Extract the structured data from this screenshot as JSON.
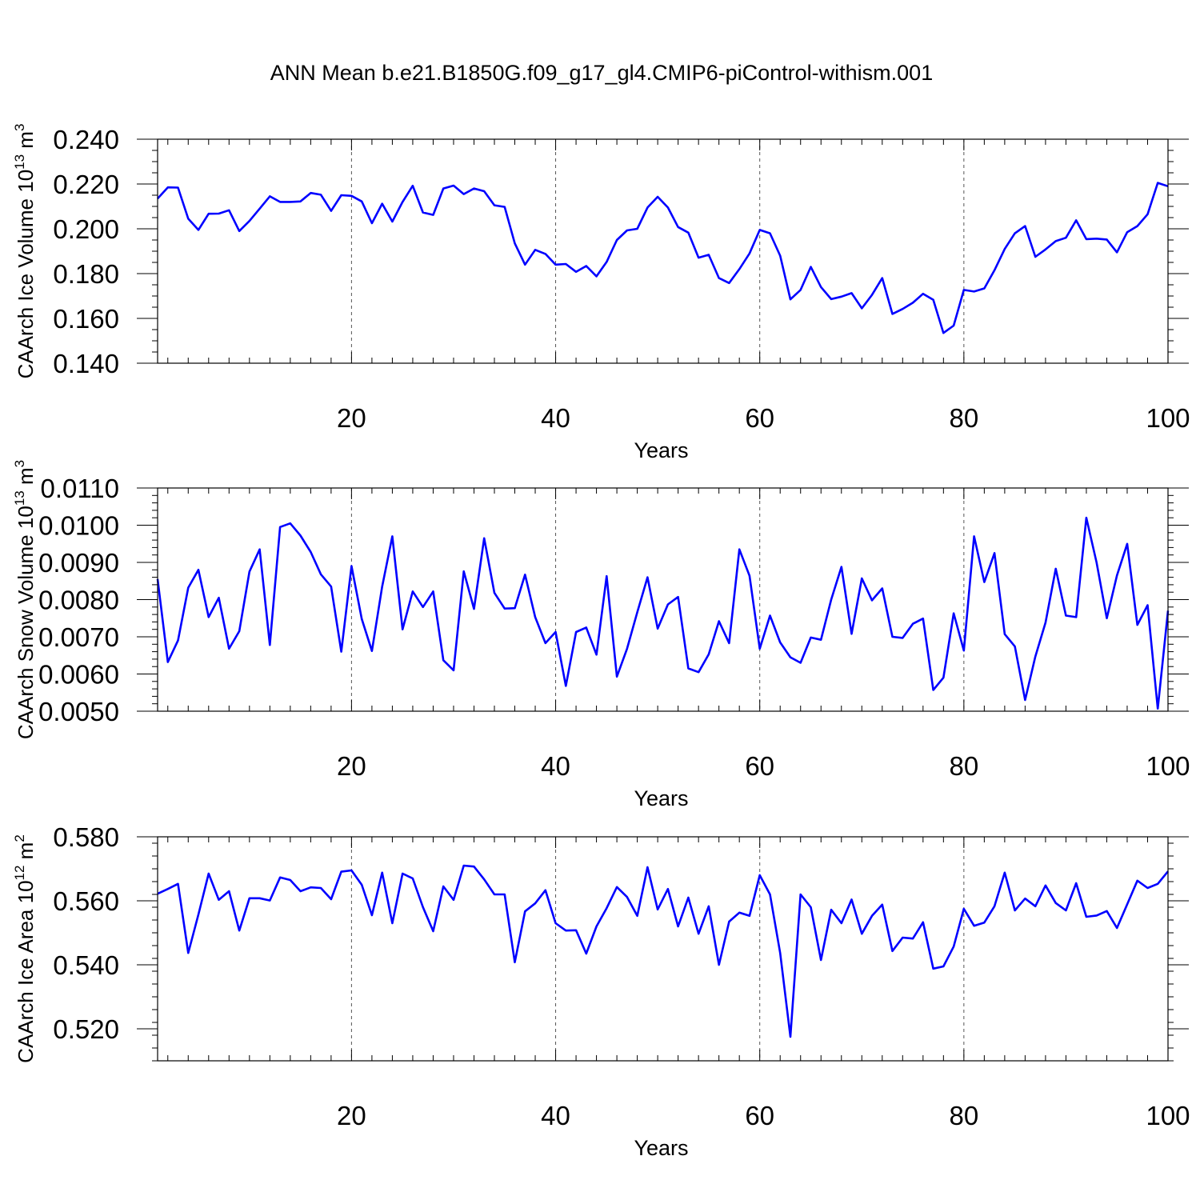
{
  "title": "ANN Mean b.e21.B1850G.f09_g17_gl4.CMIP6-piControl-withism.001",
  "colors": {
    "line": "#0000ff",
    "axis": "#000000",
    "grid": "#555555",
    "background": "#ffffff"
  },
  "chart_data": [
    {
      "type": "line",
      "ylabel": "CAArch Ice Volume 10",
      "ylabel_exp": "13",
      "ylabel_unit": " m",
      "ylabel_unit_exp": "3",
      "xlabel": "Years",
      "xlim": [
        1,
        100
      ],
      "ylim": [
        0.14,
        0.24
      ],
      "yticks": [
        0.14,
        0.16,
        0.18,
        0.2,
        0.22,
        0.24
      ],
      "yticklabels": [
        "0.140",
        "0.160",
        "0.180",
        "0.200",
        "0.220",
        "0.240"
      ],
      "yminor": 0.005,
      "xticks": [
        20,
        40,
        60,
        80,
        100
      ],
      "xticklabels": [
        "20",
        "40",
        "60",
        "80",
        "100"
      ],
      "xgrid": [
        20,
        40,
        60,
        80
      ],
      "x_start": 1,
      "series": [
        {
          "name": "CAArch Ice Volume",
          "values": [
            0.2135,
            0.2185,
            0.2184,
            0.2045,
            0.1995,
            0.2067,
            0.2068,
            0.2083,
            0.199,
            0.2035,
            0.209,
            0.2145,
            0.212,
            0.212,
            0.2122,
            0.216,
            0.2152,
            0.208,
            0.215,
            0.2147,
            0.2122,
            0.2025,
            0.2112,
            0.2032,
            0.212,
            0.2192,
            0.2073,
            0.2062,
            0.218,
            0.2193,
            0.2155,
            0.218,
            0.2168,
            0.2105,
            0.2098,
            0.1935,
            0.184,
            0.1906,
            0.1888,
            0.184,
            0.1843,
            0.1808,
            0.1834,
            0.1788,
            0.1852,
            0.195,
            0.1993,
            0.2,
            0.2095,
            0.2143,
            0.2095,
            0.2008,
            0.1983,
            0.1871,
            0.1884,
            0.178,
            0.1758,
            0.182,
            0.189,
            0.1995,
            0.198,
            0.188,
            0.1685,
            0.1727,
            0.183,
            0.174,
            0.1686,
            0.1697,
            0.1713,
            0.1645,
            0.1705,
            0.178,
            0.162,
            0.1642,
            0.167,
            0.171,
            0.1683,
            0.1535,
            0.1568,
            0.1727,
            0.172,
            0.1734,
            0.1815,
            0.191,
            0.198,
            0.2012,
            0.1875,
            0.1908,
            0.1945,
            0.196,
            0.2038,
            0.1954,
            0.1956,
            0.1952,
            0.1895,
            0.1985,
            0.2012,
            0.2065,
            0.2205,
            0.219
          ]
        }
      ]
    },
    {
      "type": "line",
      "ylabel": "CAArch Snow Volume 10",
      "ylabel_exp": "13",
      "ylabel_unit": " m",
      "ylabel_unit_exp": "3",
      "xlabel": "Years",
      "xlim": [
        1,
        100
      ],
      "ylim": [
        0.005,
        0.011
      ],
      "yticks": [
        0.005,
        0.006,
        0.007,
        0.008,
        0.009,
        0.01,
        0.011
      ],
      "yticklabels": [
        "0.0050",
        "0.0060",
        "0.0070",
        "0.0080",
        "0.0090",
        "0.0100",
        "0.0110"
      ],
      "yminor": 0.0002,
      "xticks": [
        20,
        40,
        60,
        80,
        100
      ],
      "xticklabels": [
        "20",
        "40",
        "60",
        "80",
        "100"
      ],
      "xgrid": [
        20,
        40,
        60,
        80
      ],
      "x_start": 1,
      "series": [
        {
          "name": "CAArch Snow Volume",
          "values": [
            0.00855,
            0.00632,
            0.0069,
            0.00832,
            0.0088,
            0.00753,
            0.00805,
            0.00668,
            0.00715,
            0.00875,
            0.00935,
            0.00678,
            0.00995,
            0.01005,
            0.00972,
            0.00928,
            0.00868,
            0.00835,
            0.0066,
            0.0089,
            0.00748,
            0.00662,
            0.00835,
            0.0097,
            0.0072,
            0.00822,
            0.0078,
            0.00822,
            0.00637,
            0.0061,
            0.00876,
            0.00775,
            0.00965,
            0.00818,
            0.00776,
            0.00777,
            0.00867,
            0.00753,
            0.00683,
            0.00713,
            0.00568,
            0.00713,
            0.00725,
            0.00652,
            0.00863,
            0.00593,
            0.00668,
            0.00766,
            0.0086,
            0.00722,
            0.00787,
            0.00807,
            0.00615,
            0.00605,
            0.00653,
            0.00742,
            0.00683,
            0.00935,
            0.00864,
            0.00668,
            0.00757,
            0.00685,
            0.00645,
            0.0063,
            0.00698,
            0.00692,
            0.008,
            0.00888,
            0.00708,
            0.00857,
            0.00798,
            0.0083,
            0.007,
            0.00697,
            0.00735,
            0.00749,
            0.00557,
            0.0059,
            0.00763,
            0.00663,
            0.0097,
            0.00847,
            0.00925,
            0.00707,
            0.00674,
            0.0053,
            0.00647,
            0.00738,
            0.00883,
            0.00757,
            0.00753,
            0.0102,
            0.009,
            0.0075,
            0.00865,
            0.0095,
            0.00732,
            0.00785,
            0.00507,
            0.0077
          ]
        }
      ]
    },
    {
      "type": "line",
      "ylabel": "CAArch Ice Area 10",
      "ylabel_exp": "12",
      "ylabel_unit": " m",
      "ylabel_unit_exp": "2",
      "xlabel": "Years",
      "xlim": [
        1,
        100
      ],
      "ylim": [
        0.51,
        0.58
      ],
      "yticks": [
        0.52,
        0.54,
        0.56,
        0.58
      ],
      "yticklabels": [
        "0.520",
        "0.540",
        "0.560",
        "0.580"
      ],
      "yminor": 0.004,
      "xticks": [
        20,
        40,
        60,
        80,
        100
      ],
      "xticklabels": [
        "20",
        "40",
        "60",
        "80",
        "100"
      ],
      "xgrid": [
        20,
        40,
        60,
        80
      ],
      "x_start": 1,
      "series": [
        {
          "name": "CAArch Ice Area",
          "values": [
            0.5622,
            0.5637,
            0.5653,
            0.5437,
            0.5557,
            0.5685,
            0.5603,
            0.563,
            0.5507,
            0.5608,
            0.5608,
            0.5601,
            0.5673,
            0.5665,
            0.563,
            0.5642,
            0.564,
            0.5605,
            0.5691,
            0.5695,
            0.565,
            0.5555,
            0.5688,
            0.553,
            0.5685,
            0.567,
            0.558,
            0.5505,
            0.5645,
            0.5603,
            0.571,
            0.5707,
            0.5667,
            0.562,
            0.562,
            0.5408,
            0.5567,
            0.5592,
            0.5633,
            0.553,
            0.5507,
            0.5508,
            0.5435,
            0.552,
            0.5577,
            0.5643,
            0.5612,
            0.5553,
            0.5705,
            0.5573,
            0.5637,
            0.552,
            0.561,
            0.5497,
            0.5583,
            0.54,
            0.5535,
            0.5563,
            0.5553,
            0.568,
            0.562,
            0.5437,
            0.5175,
            0.562,
            0.558,
            0.5415,
            0.5572,
            0.553,
            0.5604,
            0.5497,
            0.5553,
            0.5588,
            0.5443,
            0.5485,
            0.5482,
            0.5533,
            0.5388,
            0.5395,
            0.5457,
            0.5575,
            0.5522,
            0.5532,
            0.5583,
            0.5688,
            0.557,
            0.5607,
            0.5583,
            0.5648,
            0.5593,
            0.557,
            0.5655,
            0.555,
            0.5554,
            0.5568,
            0.5515,
            0.5589,
            0.5663,
            0.564,
            0.5653,
            0.5692
          ]
        }
      ]
    }
  ]
}
